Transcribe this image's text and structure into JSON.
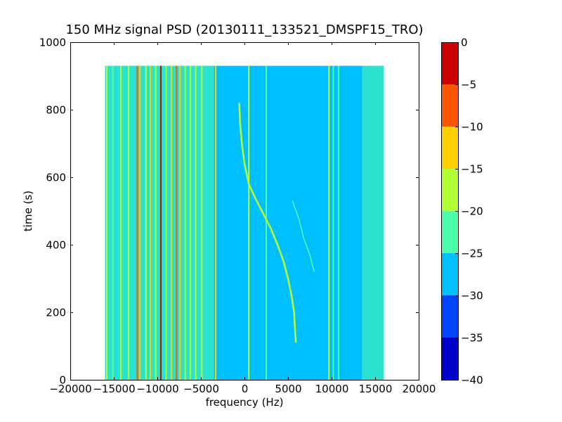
{
  "chart_data": {
    "type": "heatmap",
    "title": "150 MHz signal PSD (20130111_133521_DMSPF15_TRO)",
    "xlabel": "frequency (Hz)",
    "ylabel": "time (s)",
    "xlim": [
      -20000,
      20000
    ],
    "ylim": [
      0,
      1000
    ],
    "xticks": [
      -20000,
      -15000,
      -10000,
      -5000,
      0,
      5000,
      10000,
      15000,
      20000
    ],
    "xtick_labels": [
      "−20000",
      "−15000",
      "−10000",
      "−5000",
      "0",
      "5000",
      "10000",
      "15000",
      "20000"
    ],
    "yticks": [
      0,
      200,
      400,
      600,
      800,
      1000
    ],
    "ytick_labels": [
      "0",
      "200",
      "400",
      "600",
      "800",
      "1000"
    ],
    "data_extent": {
      "x": [
        -16000,
        16000
      ],
      "y": [
        0,
        930
      ]
    },
    "background_level": -28,
    "colorbar": {
      "levels": [
        -40,
        -35,
        -30,
        -25,
        -20,
        -15,
        -10,
        -5,
        0
      ],
      "tick_labels": [
        "−40",
        "−35",
        "−30",
        "−25",
        "−20",
        "−15",
        "−10",
        "−5",
        "0"
      ],
      "colors": [
        "#0000cd",
        "#0044ff",
        "#00bfff",
        "#4dffaa",
        "#b3ff33",
        "#ffd000",
        "#ff5500",
        "#cc0000"
      ]
    },
    "bands": [
      {
        "x": [
          -16000,
          -15000
        ],
        "level": -23
      },
      {
        "x": [
          -15000,
          -13500
        ],
        "level": -24
      },
      {
        "x": [
          -13500,
          -3500
        ],
        "level": -22
      },
      {
        "x": [
          13500,
          16000
        ],
        "level": -23
      },
      {
        "x": [
          11000,
          13500
        ],
        "level": -26
      }
    ],
    "vertical_lines": [
      {
        "x": -15800,
        "level": -20
      },
      {
        "x": -15100,
        "level": -21
      },
      {
        "x": -14200,
        "level": -20
      },
      {
        "x": -13300,
        "level": -19
      },
      {
        "x": -12300,
        "level": -8
      },
      {
        "x": -12000,
        "level": -14
      },
      {
        "x": -11300,
        "level": -18
      },
      {
        "x": -10800,
        "level": -13
      },
      {
        "x": -10200,
        "level": -17
      },
      {
        "x": -9600,
        "level": -4
      },
      {
        "x": -9000,
        "level": -17
      },
      {
        "x": -8400,
        "level": -15
      },
      {
        "x": -7800,
        "level": -8
      },
      {
        "x": -7400,
        "level": -13
      },
      {
        "x": -6800,
        "level": -17
      },
      {
        "x": -6200,
        "level": -19
      },
      {
        "x": -5600,
        "level": -16
      },
      {
        "x": -4900,
        "level": -20
      },
      {
        "x": -3300,
        "level": -13
      },
      {
        "x": 500,
        "level": -20
      },
      {
        "x": 2500,
        "level": -22
      },
      {
        "x": 9700,
        "level": -20
      },
      {
        "x": 10200,
        "level": -22
      },
      {
        "x": 10800,
        "level": -23
      }
    ],
    "drifting_trace": {
      "level": -18,
      "points": [
        [
          -600,
          820
        ],
        [
          -500,
          760
        ],
        [
          -300,
          700
        ],
        [
          0,
          640
        ],
        [
          500,
          580
        ],
        [
          1200,
          540
        ],
        [
          2000,
          500
        ],
        [
          3000,
          450
        ],
        [
          3800,
          400
        ],
        [
          4500,
          350
        ],
        [
          5000,
          300
        ],
        [
          5400,
          250
        ],
        [
          5700,
          200
        ],
        [
          5800,
          150
        ],
        [
          5900,
          110
        ]
      ]
    },
    "faint_trace": {
      "level": -23,
      "points": [
        [
          5500,
          530
        ],
        [
          6200,
          480
        ],
        [
          6800,
          420
        ],
        [
          7500,
          370
        ],
        [
          8000,
          320
        ]
      ]
    }
  }
}
